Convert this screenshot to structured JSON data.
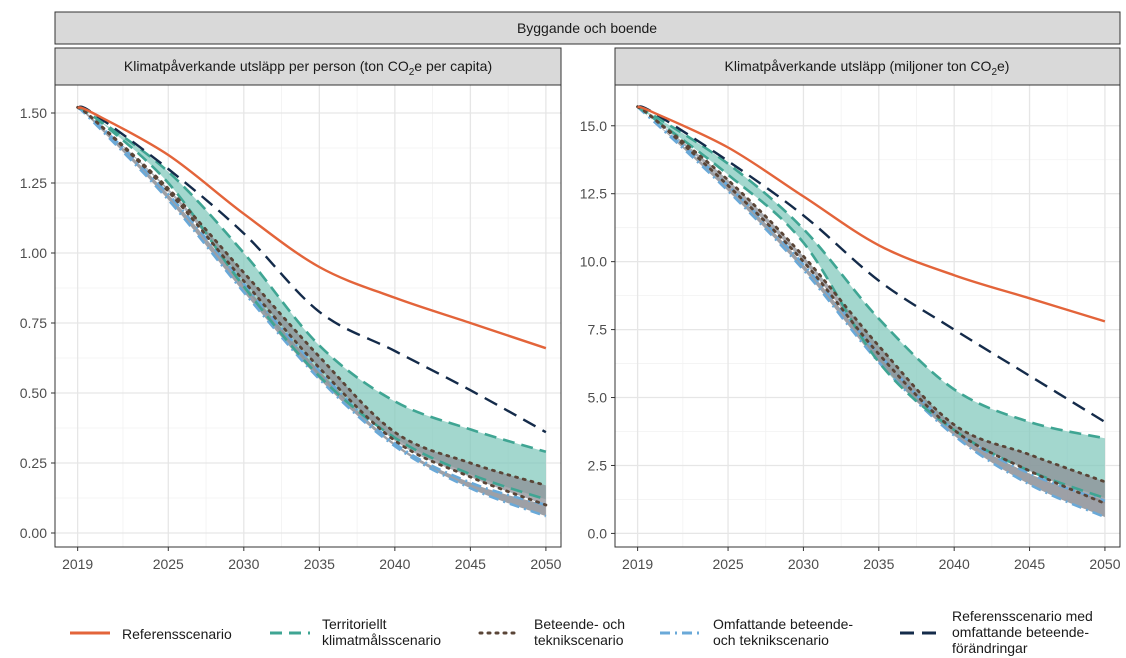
{
  "chart_data": {
    "type": "line",
    "title": "Byggande och boende",
    "x": [
      2019,
      2020,
      2025,
      2030,
      2035,
      2040,
      2045,
      2050
    ],
    "x_ticks": [
      "2019",
      "2025",
      "2030",
      "2035",
      "2040",
      "2045",
      "2050"
    ],
    "grid": true,
    "legend_position": "bottom",
    "panels": [
      {
        "title_before": "Klimatpåverkande utsläpp per person (ton CO",
        "title_sub": "2",
        "title_after": "e per capita)",
        "ylim": [
          -0.05,
          1.6
        ],
        "y_ticks": [
          0.0,
          0.25,
          0.5,
          0.75,
          1.0,
          1.25,
          1.5
        ],
        "y_tick_labels": [
          "0.00",
          "0.25",
          "0.50",
          "0.75",
          "1.00",
          "1.25",
          "1.50"
        ],
        "series": [
          {
            "name": "Referensscenario",
            "values": [
              1.52,
              1.5,
              1.35,
              1.14,
              0.95,
              0.84,
              0.75,
              0.66
            ]
          },
          {
            "name": "Referensscenario med omfattande beteende-förändringar",
            "values": [
              1.52,
              1.5,
              1.3,
              1.07,
              0.79,
              0.65,
              0.51,
              0.36
            ]
          },
          {
            "name": "Territoriellt klimatmålsscenario",
            "upper": [
              1.52,
              1.49,
              1.29,
              1.0,
              0.67,
              0.47,
              0.37,
              0.29
            ],
            "lower": [
              1.52,
              1.49,
              1.25,
              0.88,
              0.56,
              0.34,
              0.21,
              0.12
            ]
          },
          {
            "name": "Beteende- och teknikscenario",
            "upper": [
              1.52,
              1.48,
              1.23,
              0.93,
              0.63,
              0.36,
              0.25,
              0.17
            ],
            "lower": [
              1.52,
              1.48,
              1.22,
              0.9,
              0.59,
              0.33,
              0.2,
              0.1
            ]
          },
          {
            "name": "Omfattande beteende- och teknikscenario",
            "upper": [
              1.52,
              1.48,
              1.21,
              0.89,
              0.58,
              0.32,
              0.18,
              0.1
            ],
            "lower": [
              1.52,
              1.47,
              1.19,
              0.86,
              0.55,
              0.31,
              0.16,
              0.06
            ]
          }
        ]
      },
      {
        "title_before": "Klimatpåverkande utsläpp (miljoner ton CO",
        "title_sub": "2",
        "title_after": "e)",
        "ylim": [
          -0.5,
          16.5
        ],
        "y_ticks": [
          0.0,
          2.5,
          5.0,
          7.5,
          10.0,
          12.5,
          15.0
        ],
        "y_tick_labels": [
          "0.0",
          "2.5",
          "5.0",
          "7.5",
          "10.0",
          "12.5",
          "15.0"
        ],
        "series": [
          {
            "name": "Referensscenario",
            "values": [
              15.7,
              15.5,
              14.2,
              12.4,
              10.6,
              9.5,
              8.65,
              7.8
            ]
          },
          {
            "name": "Referensscenario med omfattande beteende-förändringar",
            "values": [
              15.7,
              15.5,
              13.7,
              11.7,
              9.3,
              7.5,
              5.8,
              4.1
            ]
          },
          {
            "name": "Territoriellt klimatmålsscenario",
            "upper": [
              15.7,
              15.4,
              13.6,
              11.2,
              7.9,
              5.3,
              4.1,
              3.5
            ],
            "lower": [
              15.7,
              15.3,
              13.2,
              10.7,
              6.3,
              3.8,
              2.3,
              1.3
            ]
          },
          {
            "name": "Beteende- och teknikscenario",
            "upper": [
              15.7,
              15.3,
              13.0,
              10.2,
              6.9,
              4.0,
              2.9,
              1.9
            ],
            "lower": [
              15.7,
              15.3,
              12.8,
              10.0,
              6.6,
              3.8,
              2.3,
              1.1
            ]
          },
          {
            "name": "Omfattande beteende- och teknikscenario",
            "upper": [
              15.7,
              15.2,
              12.8,
              9.9,
              6.6,
              3.8,
              2.2,
              1.2
            ],
            "lower": [
              15.7,
              15.2,
              12.6,
              9.7,
              6.3,
              3.6,
              1.8,
              0.6
            ]
          }
        ]
      }
    ],
    "legend": [
      {
        "id": "ref",
        "lines": [
          "Referensscenario"
        ],
        "color": "#E3643A",
        "dash": "solid"
      },
      {
        "id": "terr",
        "lines": [
          "Territoriellt",
          "klimatmålsscenario"
        ],
        "color": "#3FA593",
        "dash": "dashed"
      },
      {
        "id": "bt",
        "lines": [
          "Beteende- och",
          "teknikscenario"
        ],
        "color": "#5A4537",
        "dash": "dotted"
      },
      {
        "id": "obt",
        "lines": [
          "Omfattande beteende-",
          "och teknikscenario"
        ],
        "color": "#6AA9D8",
        "dash": "dashdot"
      },
      {
        "id": "refb",
        "lines": [
          "Referensscenario med",
          "omfattande beteende-",
          "förändringar"
        ],
        "color": "#142B4A",
        "dash": "longdash"
      }
    ],
    "colors": {
      "ref": "#E3643A",
      "terr": "#3FA593",
      "terr_fill": "#7CC6B9",
      "bt": "#5A4537",
      "obt": "#6AA9D8",
      "band_grey": "#8C8F96",
      "refb": "#142B4A"
    }
  }
}
